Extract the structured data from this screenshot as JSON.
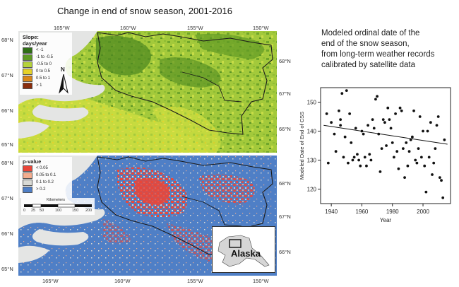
{
  "title": "Change in end of snow season, 2001-2016",
  "top_map": {
    "legend": {
      "title_line1": "Slope:",
      "title_line2": "days/year",
      "items": [
        {
          "label": "< -1",
          "color": "#2f6e16"
        },
        {
          "label": "-1 to -0.5",
          "color": "#5f9a25"
        },
        {
          "label": "-0.5 to 0",
          "color": "#b5d23b"
        },
        {
          "label": "0 to 0.5",
          "color": "#e6d22a"
        },
        {
          "label": "0.5 to 1",
          "color": "#d9861b"
        },
        {
          "label": "> 1",
          "color": "#8a2d0d"
        }
      ]
    },
    "north_arrow": "N",
    "top_ticks": [
      "165°W",
      "160°W",
      "155°W",
      "150°W"
    ],
    "left_ticks": [
      "68°N",
      "67°N",
      "66°N",
      "65°N"
    ],
    "right_ticks": [
      "68°N",
      "67°N",
      "66°N"
    ]
  },
  "bottom_map": {
    "legend": {
      "title": "p-value",
      "items": [
        {
          "label": "< 0.05",
          "color": "#e8463a"
        },
        {
          "label": "0.05 to 0.1",
          "color": "#f4ad8e"
        },
        {
          "label": "0.1 to 0.2",
          "color": "#d9dad5"
        },
        {
          "label": "> 0.2",
          "color": "#4f7fc6"
        }
      ]
    },
    "scale_title": "Kilometers",
    "scale_labels": [
      "0",
      "25",
      "50",
      "100",
      "150",
      "200"
    ],
    "inset_label": "Alaska",
    "bottom_ticks": [
      "165°W",
      "160°W",
      "155°W",
      "150°W"
    ],
    "left_ticks": [
      "68°N",
      "67°N",
      "66°N",
      "65°N"
    ],
    "right_ticks": [
      "68°N",
      "67°N",
      "66°N"
    ]
  },
  "note": {
    "lines": [
      "Modeled ordinal date of the",
      "end of the snow season,",
      "from long-term weather records",
      "calibrated by satellite data"
    ]
  },
  "chart_data": {
    "type": "scatter",
    "xlabel": "Year",
    "ylabel": "Modeled Date of End of CSS",
    "xlim": [
      1933,
      2018
    ],
    "ylim": [
      115,
      155
    ],
    "xticks": [
      1940,
      1960,
      1980,
      2000
    ],
    "yticks": [
      120,
      130,
      140,
      150
    ],
    "trend": {
      "x": [
        1935,
        2016
      ],
      "y": [
        142,
        135.5
      ]
    },
    "x": [
      1937,
      1938,
      1940,
      1942,
      1943,
      1945,
      1946,
      1946,
      1947,
      1948,
      1949,
      1950,
      1951,
      1952,
      1953,
      1954,
      1955,
      1956,
      1957,
      1958,
      1959,
      1960,
      1961,
      1962,
      1963,
      1964,
      1965,
      1966,
      1967,
      1968,
      1969,
      1970,
      1971,
      1972,
      1973,
      1974,
      1975,
      1976,
      1977,
      1978,
      1979,
      1980,
      1981,
      1982,
      1983,
      1984,
      1985,
      1986,
      1987,
      1988,
      1989,
      1990,
      1991,
      1992,
      1993,
      1994,
      1995,
      1996,
      1997,
      1998,
      1999,
      2000,
      2001,
      2002,
      2003,
      2004,
      2005,
      2006,
      2007,
      2008,
      2009,
      2010,
      2011,
      2012,
      2013,
      2014
    ],
    "y": [
      146,
      129,
      143,
      139,
      133,
      147,
      144,
      142,
      153,
      131,
      138,
      154,
      129,
      146,
      136,
      130,
      131,
      141,
      132,
      130,
      128,
      140,
      139,
      131,
      128,
      142,
      132,
      130,
      144,
      141,
      151,
      152,
      139,
      126,
      134,
      144,
      143,
      135,
      148,
      144,
      141,
      136,
      131,
      146,
      133,
      127,
      148,
      147,
      134,
      124,
      136,
      128,
      133,
      137,
      138,
      147,
      130,
      129,
      134,
      145,
      131,
      140,
      128,
      119,
      140,
      131,
      143,
      125,
      129,
      134,
      142,
      145,
      124,
      123,
      117,
      137
    ]
  },
  "colors": {
    "tundra_green": "#97c23a",
    "forest_green": "#5f9a25",
    "ocean_gray": "#e4e5e4",
    "boundary": "#1a1a1a"
  }
}
